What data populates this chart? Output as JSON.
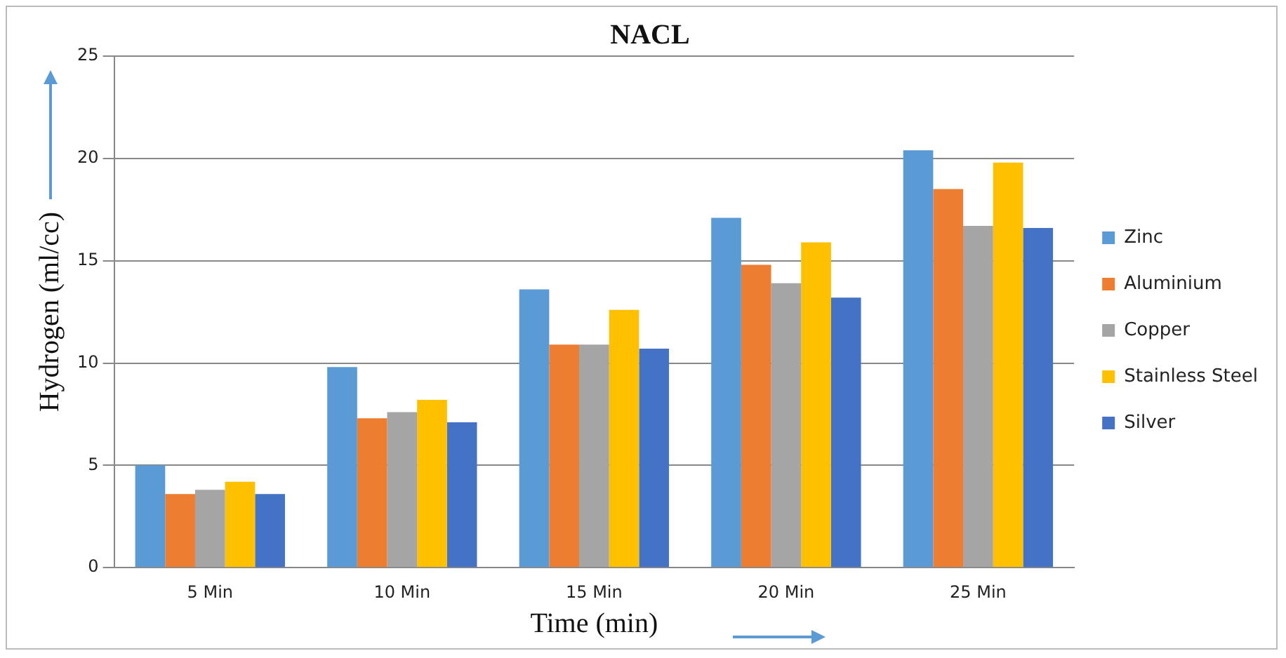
{
  "chart_data": {
    "type": "bar",
    "title": "NACL",
    "xlabel": "Time (min)",
    "ylabel": "Hydrogen (ml/cc)",
    "categories": [
      "5 Min",
      "10 Min",
      "15 Min",
      "20 Min",
      "25 Min"
    ],
    "series": [
      {
        "name": "Zinc",
        "color": "#5b9bd5",
        "values": [
          5.0,
          9.8,
          13.6,
          17.1,
          20.4
        ]
      },
      {
        "name": "Aluminium",
        "color": "#ed7d31",
        "values": [
          3.6,
          7.3,
          10.9,
          14.8,
          18.5
        ]
      },
      {
        "name": "Copper",
        "color": "#a5a5a5",
        "values": [
          3.8,
          7.6,
          10.9,
          13.9,
          16.7
        ]
      },
      {
        "name": "Stainless Steel",
        "color": "#ffc000",
        "values": [
          4.2,
          8.2,
          12.6,
          15.9,
          19.8
        ]
      },
      {
        "name": "Silver",
        "color": "#4472c4",
        "values": [
          3.6,
          7.1,
          10.7,
          13.2,
          16.6
        ]
      }
    ],
    "ylim": [
      0,
      25
    ],
    "yticks": [
      0,
      5,
      10,
      15,
      20,
      25
    ],
    "grid": "y",
    "legend": "right"
  }
}
